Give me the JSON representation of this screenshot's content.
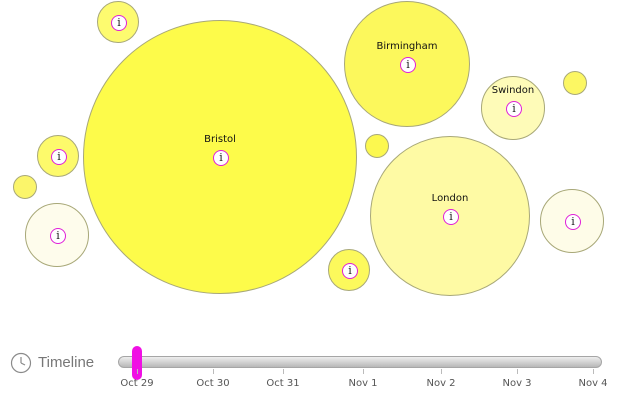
{
  "bubbles": [
    {
      "name": "",
      "color": "#fdfb6f",
      "info": true
    },
    {
      "name": "Bristol",
      "color": "#fdfb4a",
      "info": true
    },
    {
      "name": "Birmingham",
      "color": "#fcf85c",
      "info": true
    },
    {
      "name": "Swindon",
      "color": "#fefbb8",
      "info": true
    },
    {
      "name": "",
      "color": "#fcf763",
      "info": false
    },
    {
      "name": "",
      "color": "#fdfa6b",
      "info": true
    },
    {
      "name": "",
      "color": "#fcf84f",
      "info": false
    },
    {
      "name": "",
      "color": "#fbf56a",
      "info": false
    },
    {
      "name": "London",
      "color": "#fefaa4",
      "info": true
    },
    {
      "name": "",
      "color": "#fefce8",
      "info": true
    },
    {
      "name": "",
      "color": "#fefcec",
      "info": true
    },
    {
      "name": "",
      "color": "#fcf95c",
      "info": true
    }
  ],
  "timeline": {
    "title": "Timeline",
    "dates": [
      "Oct 29",
      "Oct 30",
      "Oct 31",
      "Nov 1",
      "Nov 2",
      "Nov 3",
      "Nov 4"
    ],
    "selected": "Oct 29",
    "handle_color": "#f010e4"
  },
  "icons": {
    "info": "info-icon",
    "clock": "clock-icon"
  }
}
